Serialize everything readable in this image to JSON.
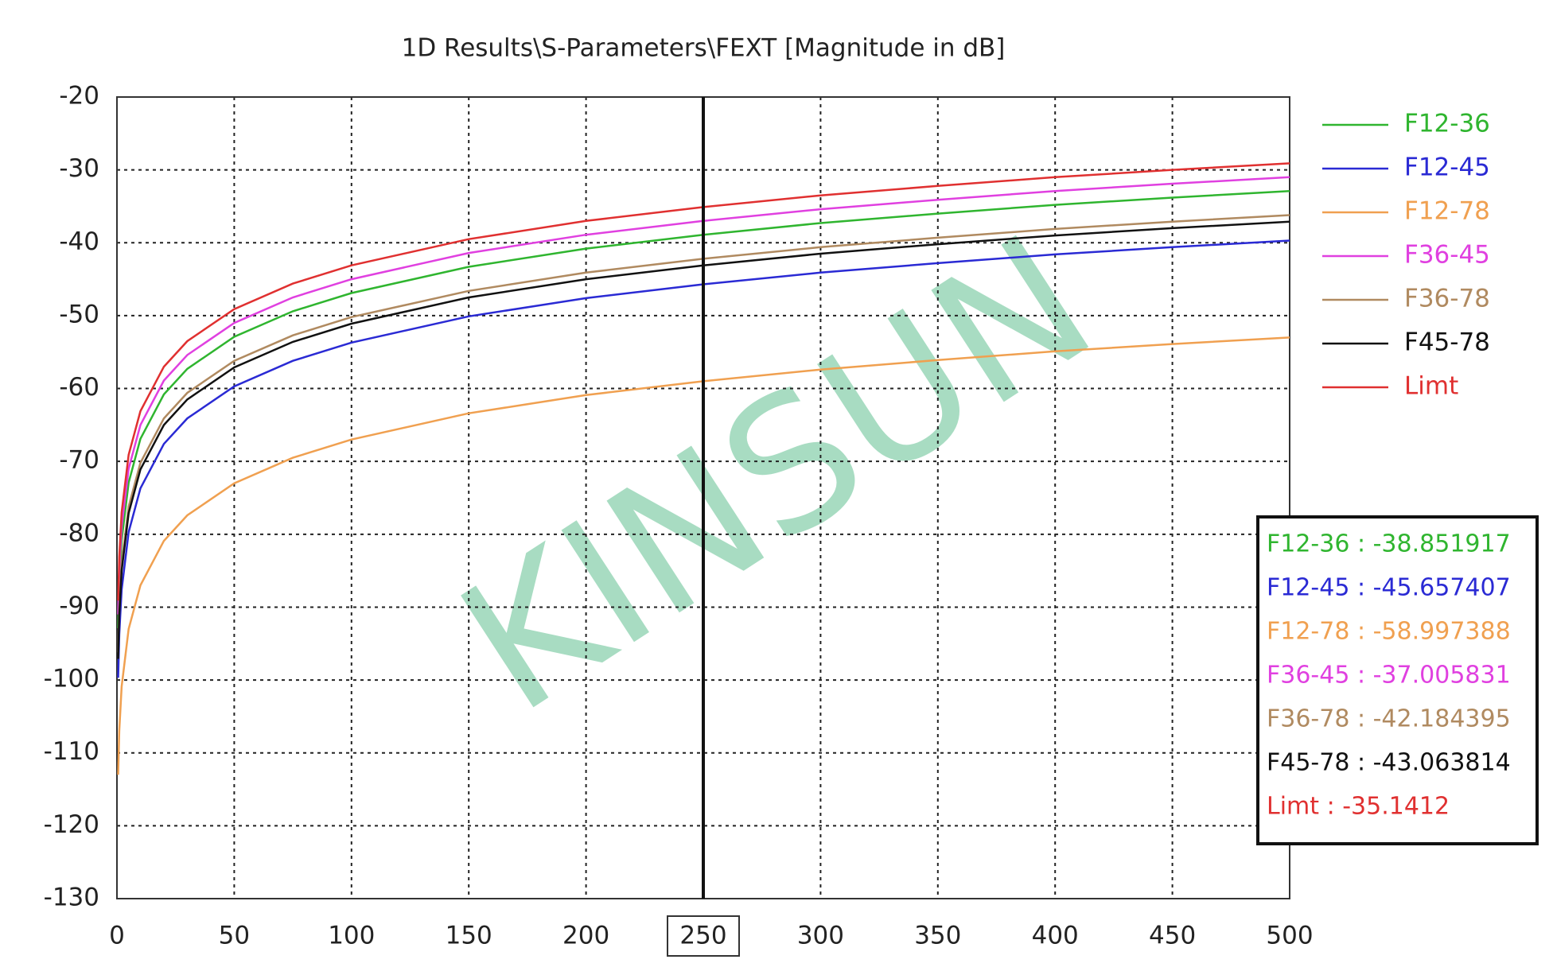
{
  "chart_data": {
    "type": "line",
    "title": "1D Results\\S-Parameters\\FEXT [Magnitude in dB]",
    "watermark": "KINSUN",
    "x": [
      0.5,
      1,
      2,
      5,
      10,
      20,
      30,
      50,
      75,
      100,
      150,
      200,
      250,
      300,
      350,
      400,
      450,
      500
    ],
    "series": [
      {
        "name": "F12-36",
        "color": "#2fb52f",
        "values": [
          -92.9,
          -86.9,
          -80.8,
          -72.9,
          -66.9,
          -60.8,
          -57.3,
          -52.9,
          -49.4,
          -46.9,
          -43.3,
          -40.8,
          -38.9,
          -37.3,
          -36.0,
          -34.8,
          -33.8,
          -32.9
        ]
      },
      {
        "name": "F12-45",
        "color": "#2a2ad4",
        "values": [
          -99.7,
          -93.7,
          -87.6,
          -79.7,
          -73.7,
          -67.6,
          -64.1,
          -59.7,
          -56.2,
          -53.7,
          -50.1,
          -47.6,
          -45.7,
          -44.1,
          -42.8,
          -41.6,
          -40.6,
          -39.7
        ]
      },
      {
        "name": "F12-78",
        "color": "#f0a050",
        "values": [
          -113.0,
          -107.0,
          -100.9,
          -93.0,
          -87.0,
          -80.9,
          -77.4,
          -73.0,
          -69.5,
          -67.0,
          -63.4,
          -60.9,
          -59.0,
          -57.4,
          -56.1,
          -54.9,
          -53.9,
          -53.0
        ]
      },
      {
        "name": "F36-45",
        "color": "#e040e0",
        "values": [
          -91.0,
          -85.0,
          -78.9,
          -71.0,
          -65.0,
          -58.9,
          -55.4,
          -51.0,
          -47.5,
          -45.0,
          -41.4,
          -38.9,
          -37.0,
          -35.4,
          -34.1,
          -32.9,
          -31.9,
          -31.0
        ]
      },
      {
        "name": "F36-78",
        "color": "#b08a60",
        "values": [
          -96.2,
          -90.2,
          -84.1,
          -76.2,
          -70.2,
          -64.1,
          -60.6,
          -56.2,
          -52.7,
          -50.2,
          -46.6,
          -44.1,
          -42.2,
          -40.6,
          -39.3,
          -38.1,
          -37.1,
          -36.2
        ]
      },
      {
        "name": "F45-78",
        "color": "#111111",
        "values": [
          -97.1,
          -91.1,
          -85.0,
          -77.1,
          -71.1,
          -65.0,
          -61.5,
          -57.1,
          -53.6,
          -51.1,
          -47.5,
          -45.0,
          -43.1,
          -41.5,
          -40.2,
          -39.0,
          -38.0,
          -37.1
        ]
      },
      {
        "name": "Limt",
        "color": "#e03030",
        "values": [
          -89.1,
          -83.1,
          -77.0,
          -69.1,
          -63.1,
          -57.0,
          -53.5,
          -49.1,
          -45.6,
          -43.1,
          -39.5,
          -37.0,
          -35.1,
          -33.5,
          -32.2,
          -31.0,
          -30.0,
          -29.1
        ]
      }
    ],
    "xlim": [
      0,
      500
    ],
    "ylim": [
      -130,
      -20
    ],
    "xticks": [
      0,
      50,
      100,
      150,
      200,
      250,
      300,
      350,
      400,
      450,
      500
    ],
    "yticks": [
      -130,
      -120,
      -110,
      -100,
      -90,
      -80,
      -70,
      -60,
      -50,
      -40,
      -30,
      -20
    ],
    "grid": true,
    "marker": {
      "x": 250,
      "readout": [
        "F12-36 : -38.851917",
        "F12-45 : -45.657407",
        "F12-78 : -58.997388",
        "F36-45 : -37.005831",
        "F36-78 : -42.184395",
        "F45-78 : -43.063814",
        "Limt : -35.1412"
      ]
    }
  }
}
